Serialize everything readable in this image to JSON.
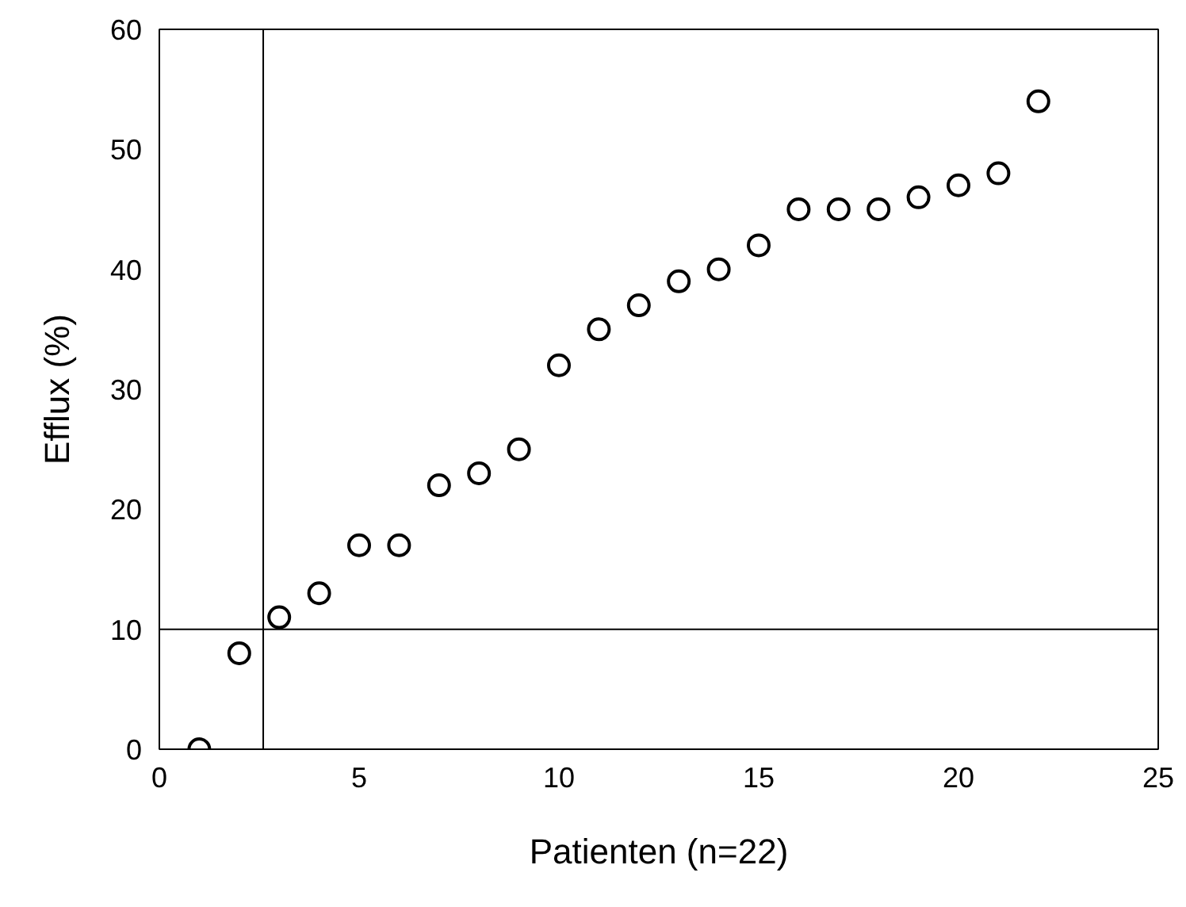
{
  "chart_data": {
    "type": "scatter",
    "xlabel": "Patienten (n=22)",
    "ylabel": "Efflux (%)",
    "x": [
      1,
      2,
      3,
      4,
      5,
      6,
      7,
      8,
      9,
      10,
      11,
      12,
      13,
      14,
      15,
      16,
      17,
      18,
      19,
      20,
      21,
      22
    ],
    "values": [
      0,
      8,
      11,
      13,
      17,
      17,
      22,
      23,
      25,
      32,
      35,
      37,
      39,
      40,
      42,
      45,
      45,
      45,
      46,
      47,
      48,
      54
    ],
    "color": "#000000",
    "marker": "circle",
    "xlim": [
      0,
      25
    ],
    "xticks": [
      0,
      5,
      10,
      15,
      20,
      25
    ],
    "ylim": [
      0,
      60
    ],
    "yticks": [
      0,
      10,
      20,
      30,
      40,
      50,
      60
    ],
    "grid": false,
    "ref_lines": [
      {
        "axis": "x",
        "value": 2.6,
        "color": "#000000"
      },
      {
        "axis": "y",
        "value": 10,
        "color": "#000000"
      }
    ]
  }
}
